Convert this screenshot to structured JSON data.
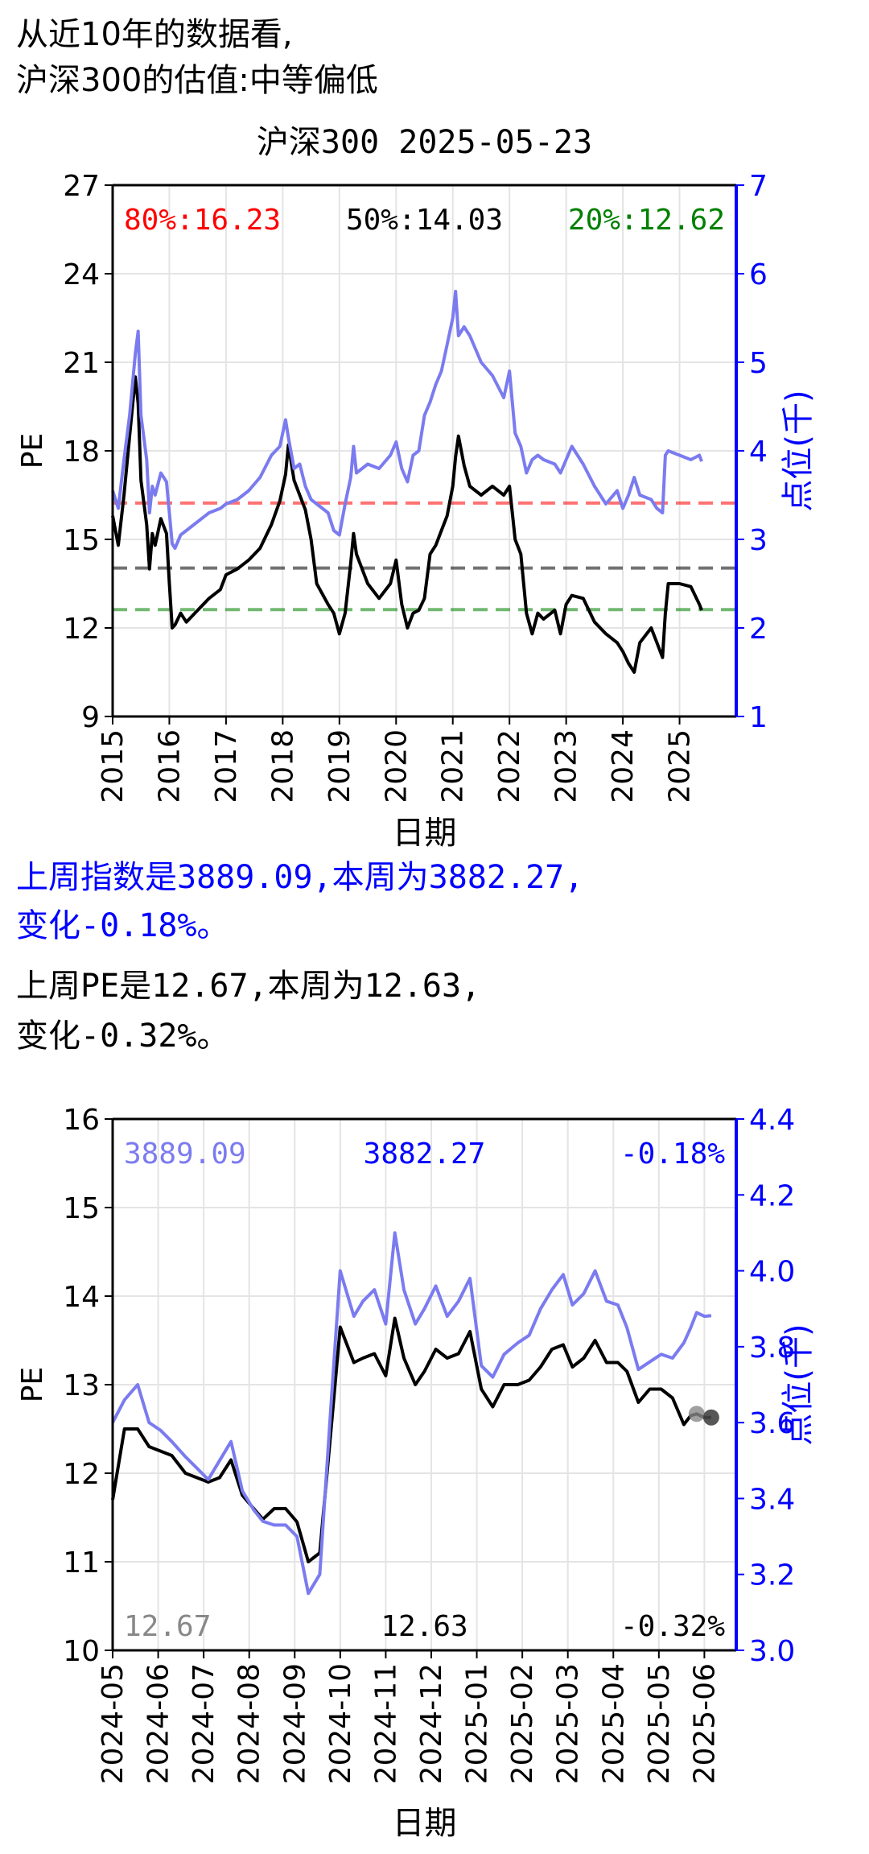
{
  "header": {
    "line1": "从近10年的数据看,",
    "line2": "沪深300的估值:中等偏低"
  },
  "summary": {
    "index_line1": "上周指数是3889.09,本周为3882.27,",
    "index_line2": "变化-0.18%。",
    "pe_line1": "上周PE是12.67,本周为12.63,",
    "pe_line2": "变化-0.32%。"
  },
  "colors": {
    "pe": "#000000",
    "index": "#7b7bf0",
    "p80": "#ff0000",
    "p50": "#000000",
    "p20": "#008000",
    "right_axis": "#0000ff"
  },
  "chart_data": [
    {
      "type": "line",
      "title": "沪深300 2025-05-23",
      "xlabel": "日期",
      "ylabel": "PE",
      "ylabel_right": "点位(千)",
      "xlim": [
        2015.0,
        2026.0
      ],
      "ylim": [
        9,
        27
      ],
      "ylim_right": [
        1,
        7
      ],
      "x_ticks": [
        "2015",
        "2016",
        "2017",
        "2018",
        "2019",
        "2020",
        "2021",
        "2022",
        "2023",
        "2024",
        "2025"
      ],
      "y_ticks": [
        "9",
        "12",
        "15",
        "18",
        "21",
        "24",
        "27"
      ],
      "y_ticks_right": [
        "1",
        "2",
        "3",
        "4",
        "5",
        "6",
        "7"
      ],
      "grid": true,
      "percentiles": [
        {
          "label": "80%:16.23",
          "value": 16.23
        },
        {
          "label": "50%:14.03",
          "value": 14.03
        },
        {
          "label": "20%:12.62",
          "value": 12.62
        }
      ],
      "series": [
        {
          "name": "PE",
          "x": [
            2015.0,
            2015.1,
            2015.2,
            2015.3,
            2015.4,
            2015.45,
            2015.5,
            2015.6,
            2015.65,
            2015.7,
            2015.75,
            2015.85,
            2015.95,
            2016.0,
            2016.05,
            2016.1,
            2016.2,
            2016.3,
            2016.5,
            2016.7,
            2016.9,
            2017.0,
            2017.2,
            2017.4,
            2017.6,
            2017.8,
            2017.95,
            2018.05,
            2018.1,
            2018.2,
            2018.3,
            2018.4,
            2018.5,
            2018.6,
            2018.8,
            2018.9,
            2019.0,
            2019.1,
            2019.2,
            2019.25,
            2019.3,
            2019.5,
            2019.7,
            2019.9,
            2020.0,
            2020.1,
            2020.2,
            2020.3,
            2020.4,
            2020.5,
            2020.6,
            2020.7,
            2020.8,
            2020.9,
            2021.0,
            2021.05,
            2021.1,
            2021.2,
            2021.3,
            2021.5,
            2021.7,
            2021.9,
            2022.0,
            2022.1,
            2022.2,
            2022.3,
            2022.4,
            2022.5,
            2022.6,
            2022.8,
            2022.9,
            2023.0,
            2023.1,
            2023.3,
            2023.5,
            2023.7,
            2023.9,
            2024.0,
            2024.1,
            2024.2,
            2024.3,
            2024.5,
            2024.6,
            2024.7,
            2024.75,
            2024.8,
            2025.0,
            2025.2,
            2025.35,
            2025.39
          ],
          "values": [
            15.8,
            14.8,
            16.5,
            18.5,
            20.5,
            19.6,
            17.0,
            15.5,
            14.0,
            15.2,
            14.8,
            15.7,
            15.2,
            13.5,
            12.0,
            12.1,
            12.5,
            12.2,
            12.6,
            13.0,
            13.3,
            13.8,
            14.0,
            14.3,
            14.7,
            15.5,
            16.3,
            17.2,
            18.2,
            17.0,
            16.5,
            16.0,
            15.0,
            13.5,
            12.8,
            12.5,
            11.8,
            12.5,
            14.2,
            15.2,
            14.5,
            13.5,
            13.0,
            13.5,
            14.3,
            12.8,
            12.0,
            12.5,
            12.6,
            13.0,
            14.5,
            14.8,
            15.3,
            15.8,
            16.8,
            17.8,
            18.5,
            17.5,
            16.8,
            16.5,
            16.8,
            16.5,
            16.8,
            15.0,
            14.5,
            12.5,
            11.8,
            12.5,
            12.3,
            12.6,
            11.8,
            12.8,
            13.1,
            13.0,
            12.2,
            11.8,
            11.5,
            11.2,
            10.8,
            10.5,
            11.5,
            12.0,
            11.5,
            11.0,
            12.5,
            13.5,
            13.5,
            13.4,
            12.8,
            12.6
          ]
        },
        {
          "name": "点位(千)",
          "axis": "right",
          "x": [
            2015.0,
            2015.1,
            2015.2,
            2015.3,
            2015.4,
            2015.45,
            2015.5,
            2015.6,
            2015.65,
            2015.7,
            2015.75,
            2015.85,
            2015.95,
            2016.0,
            2016.05,
            2016.1,
            2016.2,
            2016.3,
            2016.5,
            2016.7,
            2016.9,
            2017.0,
            2017.2,
            2017.4,
            2017.6,
            2017.8,
            2017.95,
            2018.05,
            2018.1,
            2018.2,
            2018.3,
            2018.4,
            2018.5,
            2018.6,
            2018.8,
            2018.9,
            2019.0,
            2019.1,
            2019.2,
            2019.25,
            2019.3,
            2019.5,
            2019.7,
            2019.9,
            2020.0,
            2020.1,
            2020.2,
            2020.3,
            2020.4,
            2020.5,
            2020.6,
            2020.7,
            2020.8,
            2020.9,
            2021.0,
            2021.05,
            2021.1,
            2021.2,
            2021.3,
            2021.5,
            2021.7,
            2021.9,
            2022.0,
            2022.1,
            2022.2,
            2022.3,
            2022.4,
            2022.5,
            2022.6,
            2022.8,
            2022.9,
            2023.0,
            2023.1,
            2023.3,
            2023.5,
            2023.7,
            2023.9,
            2024.0,
            2024.1,
            2024.2,
            2024.3,
            2024.5,
            2024.6,
            2024.7,
            2024.75,
            2024.8,
            2025.0,
            2025.2,
            2025.35,
            2025.39
          ],
          "values": [
            3.55,
            3.35,
            3.9,
            4.4,
            5.1,
            5.35,
            4.4,
            3.9,
            3.3,
            3.6,
            3.5,
            3.75,
            3.65,
            3.3,
            2.95,
            2.9,
            3.05,
            3.1,
            3.2,
            3.3,
            3.35,
            3.4,
            3.45,
            3.55,
            3.7,
            3.95,
            4.05,
            4.35,
            4.15,
            3.8,
            3.85,
            3.6,
            3.45,
            3.4,
            3.3,
            3.1,
            3.05,
            3.4,
            3.7,
            4.05,
            3.75,
            3.85,
            3.8,
            3.95,
            4.1,
            3.8,
            3.65,
            3.95,
            4.0,
            4.4,
            4.55,
            4.75,
            4.9,
            5.2,
            5.5,
            5.8,
            5.3,
            5.4,
            5.3,
            5.0,
            4.85,
            4.6,
            4.9,
            4.2,
            4.05,
            3.75,
            3.9,
            3.95,
            3.9,
            3.85,
            3.75,
            3.9,
            4.05,
            3.85,
            3.6,
            3.4,
            3.55,
            3.35,
            3.5,
            3.7,
            3.5,
            3.45,
            3.35,
            3.3,
            3.95,
            4.0,
            3.95,
            3.9,
            3.95,
            3.88
          ]
        }
      ]
    },
    {
      "type": "line",
      "xlabel": "日期",
      "ylabel": "PE",
      "ylabel_right": "点位(千)",
      "xlim": [
        0,
        13.7
      ],
      "ylim": [
        10,
        16
      ],
      "ylim_right": [
        3.0,
        4.4
      ],
      "x_ticks": [
        "2024-05",
        "2024-06",
        "2024-07",
        "2024-08",
        "2024-09",
        "2024-10",
        "2024-11",
        "2024-12",
        "2025-01",
        "2025-02",
        "2025-03",
        "2025-04",
        "2025-05",
        "2025-06"
      ],
      "y_ticks": [
        "10",
        "11",
        "12",
        "13",
        "14",
        "15",
        "16"
      ],
      "y_ticks_right": [
        "3.0",
        "3.2",
        "3.4",
        "3.6",
        "3.8",
        "4.0",
        "4.2",
        "4.4"
      ],
      "grid": true,
      "annotations": {
        "index_last_week": "3889.09",
        "index_this_week": "3882.27",
        "index_change": "-0.18%",
        "pe_last_week": "12.67",
        "pe_this_week": "12.63",
        "pe_change": "-0.32%"
      },
      "series": [
        {
          "name": "PE",
          "x": [
            0.0,
            0.26,
            0.55,
            0.8,
            1.05,
            1.3,
            1.6,
            1.85,
            2.1,
            2.35,
            2.6,
            2.85,
            3.1,
            3.3,
            3.55,
            3.8,
            4.05,
            4.3,
            4.55,
            4.8,
            5.0,
            5.3,
            5.5,
            5.75,
            6.0,
            6.2,
            6.4,
            6.65,
            6.85,
            7.1,
            7.35,
            7.6,
            7.85,
            8.1,
            8.35,
            8.6,
            8.9,
            9.15,
            9.4,
            9.65,
            9.9,
            10.1,
            10.35,
            10.6,
            10.85,
            11.1,
            11.3,
            11.55,
            11.8,
            12.05,
            12.3,
            12.55,
            12.7,
            12.83,
            13.0,
            13.15
          ],
          "values": [
            11.7,
            12.5,
            12.5,
            12.3,
            12.25,
            12.2,
            12.0,
            11.95,
            11.9,
            11.95,
            12.15,
            11.75,
            11.6,
            11.48,
            11.6,
            11.6,
            11.45,
            11.0,
            11.1,
            12.5,
            13.65,
            13.25,
            13.3,
            13.35,
            13.1,
            13.75,
            13.3,
            13.0,
            13.15,
            13.4,
            13.3,
            13.35,
            13.6,
            12.95,
            12.75,
            13.0,
            13.0,
            13.05,
            13.2,
            13.4,
            13.45,
            13.2,
            13.3,
            13.5,
            13.25,
            13.25,
            13.15,
            12.8,
            12.95,
            12.95,
            12.85,
            12.55,
            12.65,
            12.67,
            12.63,
            12.63
          ]
        },
        {
          "name": "点位(千)",
          "axis": "right",
          "x": [
            0.0,
            0.26,
            0.55,
            0.8,
            1.05,
            1.3,
            1.6,
            1.85,
            2.1,
            2.35,
            2.6,
            2.85,
            3.1,
            3.3,
            3.55,
            3.8,
            4.05,
            4.3,
            4.55,
            4.8,
            5.0,
            5.3,
            5.5,
            5.75,
            6.0,
            6.2,
            6.4,
            6.65,
            6.85,
            7.1,
            7.35,
            7.6,
            7.85,
            8.1,
            8.35,
            8.6,
            8.9,
            9.15,
            9.4,
            9.65,
            9.9,
            10.1,
            10.35,
            10.6,
            10.85,
            11.1,
            11.3,
            11.55,
            11.8,
            12.05,
            12.3,
            12.55,
            12.7,
            12.83,
            13.0,
            13.15
          ],
          "values": [
            3.6,
            3.66,
            3.7,
            3.6,
            3.58,
            3.55,
            3.51,
            3.48,
            3.45,
            3.5,
            3.55,
            3.42,
            3.37,
            3.34,
            3.33,
            3.33,
            3.3,
            3.15,
            3.2,
            3.65,
            4.0,
            3.88,
            3.92,
            3.95,
            3.86,
            4.1,
            3.95,
            3.86,
            3.9,
            3.96,
            3.88,
            3.92,
            3.98,
            3.75,
            3.72,
            3.78,
            3.81,
            3.83,
            3.9,
            3.95,
            3.99,
            3.91,
            3.94,
            4.0,
            3.92,
            3.91,
            3.85,
            3.74,
            3.76,
            3.78,
            3.77,
            3.81,
            3.85,
            3.89,
            3.88,
            3.882
          ]
        }
      ]
    }
  ]
}
